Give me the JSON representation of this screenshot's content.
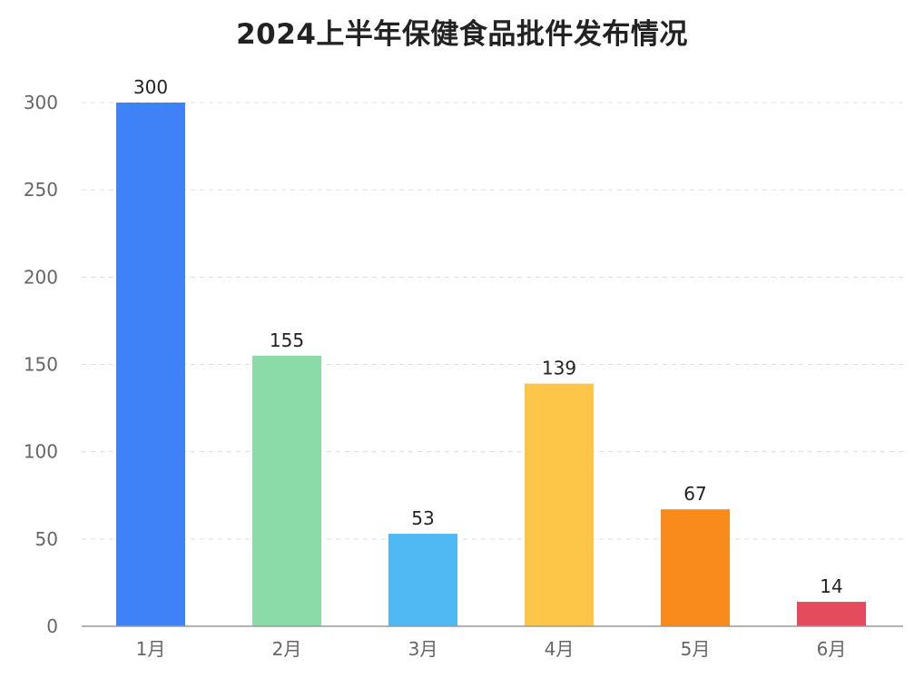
{
  "chart_data": {
    "type": "bar",
    "title": "2024上半年保健食品批件发布情况",
    "categories": [
      "1月",
      "2月",
      "3月",
      "4月",
      "5月",
      "6月"
    ],
    "values": [
      300,
      155,
      53,
      139,
      67,
      14
    ],
    "colors": [
      "#3f82f7",
      "#8adba8",
      "#50b9f4",
      "#fdc648",
      "#f98a1c",
      "#e44b5d"
    ],
    "ylim": [
      0,
      300
    ],
    "yticks": [
      0,
      50,
      100,
      150,
      200,
      250,
      300
    ],
    "grid": true,
    "xlabel": "",
    "ylabel": ""
  }
}
